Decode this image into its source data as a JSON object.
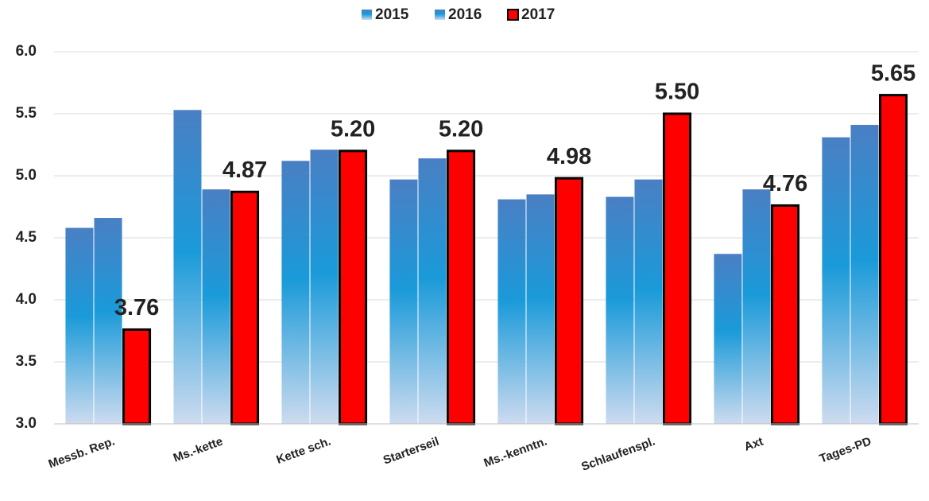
{
  "chart_data": {
    "type": "bar",
    "categories": [
      "Messb. Rep.",
      "Ms.-kette",
      "Kette sch.",
      "Starterseil",
      "Ms.-kenntn.",
      "Schlaufenspl.",
      "Axt",
      "Tages-PD"
    ],
    "series": [
      {
        "name": "2015",
        "color": "#1a9ad9",
        "values": [
          4.58,
          5.53,
          5.12,
          4.97,
          4.81,
          4.83,
          4.37,
          5.31
        ]
      },
      {
        "name": "2016",
        "color": "#1a9ad9",
        "values": [
          4.66,
          4.89,
          5.21,
          5.14,
          4.85,
          4.97,
          4.89,
          5.41
        ]
      },
      {
        "name": "2017",
        "color": "#ff0000",
        "values": [
          3.76,
          4.87,
          5.2,
          5.2,
          4.98,
          5.5,
          4.76,
          5.65
        ],
        "value_labels": [
          "3.76",
          "4.87",
          "5.20",
          "5.20",
          "4.98",
          "5.50",
          "4.76",
          "5.65"
        ]
      }
    ],
    "ylim": [
      3.0,
      6.0
    ],
    "yticks": [
      {
        "value": 3.0,
        "label": "3.0"
      },
      3.5,
      {
        "value": 4.0,
        "label": "4.0"
      },
      4.5,
      {
        "value": 5.0,
        "label": "5.0"
      },
      5.5,
      {
        "value": 6.0,
        "label": "6.0"
      }
    ],
    "grid": true,
    "legend": "top"
  }
}
